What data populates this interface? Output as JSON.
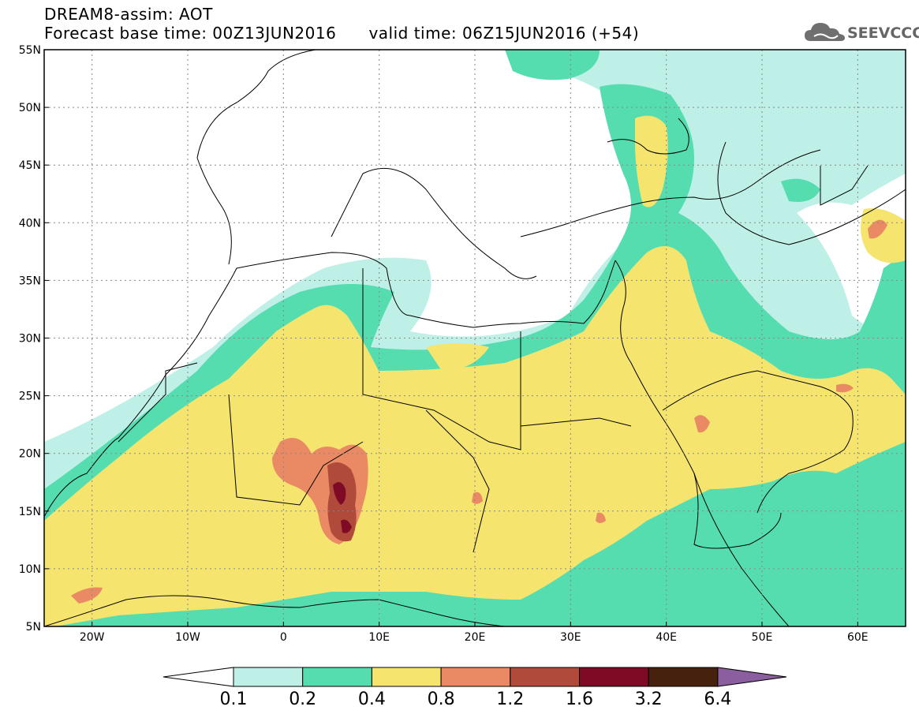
{
  "header": {
    "title_line1": "DREAM8-assim: AOT",
    "forecast_base": "Forecast base time: 00Z13JUN2016",
    "valid_time": "valid time: 06Z15JUN2016 (+54)",
    "logo_text": "SEEVCCC"
  },
  "axes": {
    "lat_labels": [
      "55N",
      "50N",
      "45N",
      "40N",
      "35N",
      "30N",
      "25N",
      "20N",
      "15N",
      "10N",
      "5N"
    ],
    "lon_labels": [
      "20W",
      "10W",
      "0",
      "10E",
      "20E",
      "30E",
      "40E",
      "50E",
      "60E"
    ]
  },
  "colorbar": {
    "labels": [
      "0.1",
      "0.2",
      "0.4",
      "0.8",
      "1.2",
      "1.6",
      "3.2",
      "6.4"
    ],
    "colors": [
      "#ffffff",
      "#bff0e8",
      "#55ddb0",
      "#f5e46e",
      "#ea8a64",
      "#b04b3c",
      "#7e0a25",
      "#45210e",
      "#8b5ea0"
    ]
  },
  "colors": {
    "c1": "#bff0e8",
    "c2": "#55ddb0",
    "c3": "#f5e46e",
    "c4": "#ea8a64",
    "c5": "#b04b3c",
    "c6": "#7e0a25"
  }
}
